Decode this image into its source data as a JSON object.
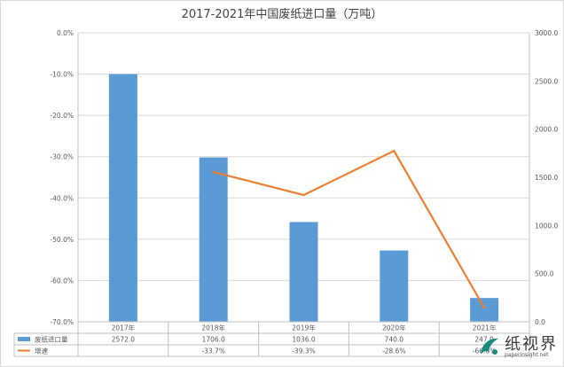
{
  "chart_data": {
    "type": "bar",
    "title": "2017-2021年中国废纸进口量（万吨）",
    "categories": [
      "2017年",
      "2018年",
      "2019年",
      "2020年",
      "2021年"
    ],
    "series": [
      {
        "name": "废纸进口量",
        "type": "bar",
        "axis": "right",
        "values": [
          2572.0,
          1706.0,
          1036.0,
          740.0,
          247.0
        ],
        "labels": [
          "2572.0",
          "1706.0",
          "1036.0",
          "740.0",
          "247.0"
        ],
        "color": "#5b9bd5"
      },
      {
        "name": "增速",
        "type": "line",
        "axis": "left",
        "values": [
          null,
          -33.7,
          -39.3,
          -28.6,
          -66.6
        ],
        "labels": [
          "",
          "-33.7%",
          "-39.3%",
          "-28.6%",
          "-66.6%"
        ],
        "color": "#ed7d31"
      }
    ],
    "left_axis": {
      "ylim": [
        -70,
        0
      ],
      "ticks": [
        "0.0%",
        "-10.0%",
        "-20.0%",
        "-30.0%",
        "-40.0%",
        "-50.0%",
        "-60.0%",
        "-70.0%"
      ]
    },
    "right_axis": {
      "ylim": [
        0,
        3000
      ],
      "ticks": [
        "0.0",
        "500.0",
        "1000.0",
        "1500.0",
        "2000.0",
        "2500.0",
        "3000.0"
      ]
    },
    "grid": true,
    "legend": "data table below chart"
  },
  "watermark": {
    "title": "纸视界",
    "site": "paperinsight.net",
    "mark_color": "#1a8a7a"
  }
}
